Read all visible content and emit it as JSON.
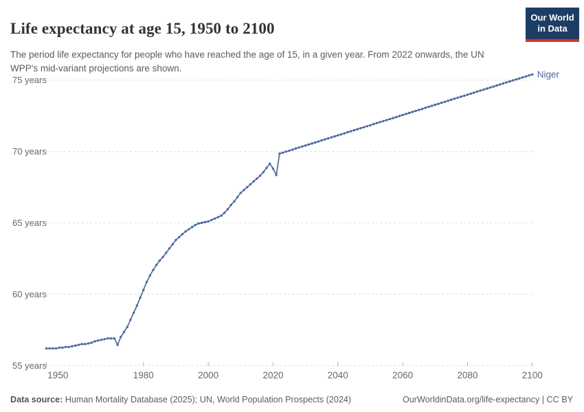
{
  "header": {
    "title": "Life expectancy at age 15, 1950 to 2100",
    "subtitle": "The period life expectancy for people who have reached the age of 15, in a given year. From 2022 onwards, the UN WPP's mid-variant projections are shown.",
    "logo": {
      "line1": "Our World",
      "line2": "in Data"
    }
  },
  "footer": {
    "source_label": "Data source:",
    "source_text": " Human Mortality Database (2025); UN, World Population Prospects (2024)",
    "link_text": "OurWorldinData.org/life-expectancy | CC BY"
  },
  "colors": {
    "line": "#4c6a9c",
    "gridline": "#dadada",
    "axis_label": "#666666",
    "tick_mark": "#b0b0b0",
    "logo_bg": "#1d3d63",
    "logo_red": "#dc3222",
    "title_text": "#333333",
    "subtitle_text": "#5b5b5b"
  },
  "chart_data": {
    "type": "line",
    "title": "Life expectancy at age 15, 1950 to 2100",
    "entity_label": "Niger",
    "xlim": [
      1950,
      2100
    ],
    "ylim": [
      55,
      76
    ],
    "grid": "horizontal-dashed",
    "legend": "line-end-label",
    "x_ticks": [
      1950,
      1980,
      2000,
      2020,
      2040,
      2060,
      2080,
      2100
    ],
    "y_ticks": [
      {
        "value": 55,
        "label": "55 years"
      },
      {
        "value": 60,
        "label": "60 years"
      },
      {
        "value": 65,
        "label": "65 years"
      },
      {
        "value": 70,
        "label": "70 years"
      },
      {
        "value": 75,
        "label": "75 years"
      }
    ],
    "series": [
      {
        "name": "Niger",
        "color": "#4c6a9c",
        "start_year": 1950,
        "projection_from": 2022,
        "values": [
          56.2,
          56.2,
          56.2,
          56.2,
          56.25,
          56.25,
          56.3,
          56.3,
          56.35,
          56.4,
          56.45,
          56.5,
          56.5,
          56.55,
          56.6,
          56.7,
          56.75,
          56.8,
          56.85,
          56.9,
          56.9,
          56.9,
          56.45,
          57.0,
          57.35,
          57.7,
          58.2,
          58.7,
          59.2,
          59.75,
          60.3,
          60.85,
          61.3,
          61.7,
          62.05,
          62.35,
          62.6,
          62.9,
          63.2,
          63.5,
          63.8,
          64.0,
          64.2,
          64.4,
          64.55,
          64.7,
          64.85,
          64.95,
          65.0,
          65.05,
          65.1,
          65.2,
          65.3,
          65.4,
          65.5,
          65.7,
          65.95,
          66.25,
          66.5,
          66.8,
          67.1,
          67.3,
          67.5,
          67.7,
          67.9,
          68.1,
          68.3,
          68.55,
          68.85,
          69.15,
          68.8,
          68.35,
          69.85,
          69.92,
          69.99,
          70.06,
          70.13,
          70.21,
          70.28,
          70.35,
          70.42,
          70.49,
          70.56,
          70.63,
          70.7,
          70.78,
          70.85,
          70.92,
          70.99,
          71.06,
          71.13,
          71.2,
          71.27,
          71.35,
          71.42,
          71.49,
          71.56,
          71.63,
          71.7,
          71.77,
          71.84,
          71.92,
          71.99,
          72.06,
          72.13,
          72.2,
          72.27,
          72.34,
          72.41,
          72.49,
          72.56,
          72.63,
          72.7,
          72.77,
          72.84,
          72.91,
          72.98,
          73.06,
          73.13,
          73.2,
          73.27,
          73.34,
          73.41,
          73.48,
          73.55,
          73.63,
          73.7,
          73.77,
          73.84,
          73.91,
          73.98,
          74.05,
          74.12,
          74.2,
          74.27,
          74.34,
          74.41,
          74.48,
          74.55,
          74.62,
          74.69,
          74.77,
          74.84,
          74.91,
          74.98,
          75.05,
          75.12,
          75.19,
          75.26,
          75.33,
          75.4
        ]
      }
    ]
  }
}
